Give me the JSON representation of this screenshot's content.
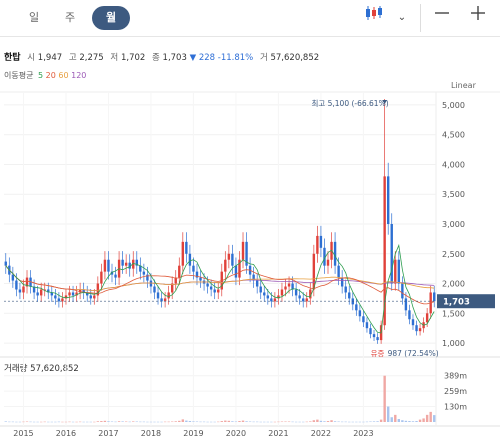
{
  "tabs": [
    {
      "label": "일",
      "active": false
    },
    {
      "label": "주",
      "active": false
    },
    {
      "label": "월",
      "active": true
    }
  ],
  "toolbar": {
    "chart_type_icon": "candlestick-icon",
    "dropdown_icon": "chevron-down-icon",
    "minimize_icon": "minus-icon",
    "add_icon": "plus-icon"
  },
  "stock": {
    "name": "한탑",
    "open_label": "시",
    "open": "1,947",
    "high_label": "고",
    "high": "2,275",
    "low_label": "저",
    "low": "1,702",
    "close_label": "종",
    "close": "1,703",
    "change_arrow": "▼",
    "change": "228",
    "change_pct": "-11.81%",
    "volume_label": "거",
    "volume": "57,620,852"
  },
  "moving_average": {
    "label": "이동평균",
    "periods": [
      {
        "label": "5",
        "color": "#2e9e4f"
      },
      {
        "label": "20",
        "color": "#e05a3a"
      },
      {
        "label": "60",
        "color": "#e8a040"
      },
      {
        "label": "120",
        "color": "#9b59b6"
      }
    ]
  },
  "scale_mode": "Linear",
  "annotations": {
    "max": "최고 5,100 (-66.61%)",
    "min_name": "유증",
    "min": "987 (72.54%)"
  },
  "current_price_tag": "1,703",
  "volume_panel": {
    "title": "거래량 57,620,852"
  },
  "colors": {
    "up": "#e0413a",
    "down": "#2d6fd2",
    "accent": "#3d5a80",
    "current_price_bg": "#3d5a80"
  },
  "chart_data": {
    "type": "candlestick",
    "y_ticks": [
      "5,000",
      "4,500",
      "4,000",
      "3,500",
      "3,000",
      "2,500",
      "2,000",
      "1,500",
      "1,000"
    ],
    "ylim": [
      850,
      5150
    ],
    "x_ticks": [
      "2015",
      "2016",
      "2017",
      "2018",
      "2019",
      "2020",
      "2021",
      "2022",
      "2023"
    ],
    "volume_ticks": [
      "389m",
      "259m",
      "130m"
    ],
    "volume_ylim": [
      0,
      420
    ],
    "max_price": 5100,
    "min_price": 987,
    "last_close": 1703,
    "monthly_close": [
      2300,
      2150,
      2050,
      1900,
      1850,
      1950,
      2100,
      1950,
      1850,
      1800,
      1900,
      1900,
      1850,
      1800,
      1750,
      1700,
      1750,
      1800,
      1850,
      1800,
      1850,
      1900,
      1850,
      1800,
      1750,
      1800,
      2000,
      2200,
      2400,
      2200,
      2150,
      2100,
      2400,
      2300,
      2350,
      2250,
      2400,
      2300,
      2200,
      2150,
      2050,
      1950,
      1850,
      1750,
      1700,
      1750,
      1850,
      2000,
      2100,
      2300,
      2700,
      2500,
      2300,
      2200,
      2100,
      2050,
      2000,
      1950,
      1900,
      1850,
      1900,
      2200,
      2400,
      2500,
      2300,
      2100,
      2400,
      2700,
      2300,
      2150,
      2050,
      1950,
      1850,
      1800,
      1750,
      1700,
      1750,
      1800,
      1900,
      1950,
      2000,
      1900,
      1800,
      1750,
      1700,
      1750,
      1900,
      2500,
      2800,
      2600,
      2300,
      2400,
      2700,
      2300,
      2100,
      1950,
      1850,
      1750,
      1650,
      1550,
      1450,
      1350,
      1250,
      1150,
      1100,
      1050,
      1300,
      3800,
      3000,
      2000,
      2400,
      2000,
      1750,
      1550,
      1400,
      1300,
      1200,
      1250,
      1350,
      1500,
      1850,
      1703
    ],
    "volume_m": [
      5,
      3,
      3,
      2,
      2,
      3,
      4,
      3,
      2,
      2,
      2,
      3,
      2,
      2,
      2,
      3,
      2,
      2,
      3,
      2,
      2,
      3,
      2,
      2,
      2,
      2,
      6,
      8,
      10,
      6,
      4,
      3,
      6,
      5,
      4,
      3,
      5,
      4,
      3,
      3,
      2,
      2,
      2,
      2,
      2,
      3,
      3,
      4,
      6,
      10,
      22,
      12,
      8,
      5,
      4,
      3,
      3,
      2,
      2,
      2,
      3,
      8,
      12,
      10,
      6,
      4,
      8,
      12,
      6,
      4,
      3,
      3,
      2,
      2,
      2,
      2,
      2,
      3,
      4,
      4,
      4,
      3,
      2,
      2,
      2,
      3,
      5,
      15,
      20,
      10,
      6,
      8,
      15,
      6,
      4,
      3,
      3,
      2,
      2,
      2,
      2,
      2,
      3,
      4,
      5,
      6,
      20,
      389,
      130,
      40,
      60,
      25,
      15,
      10,
      8,
      6,
      8,
      20,
      30,
      60,
      85,
      58
    ]
  }
}
